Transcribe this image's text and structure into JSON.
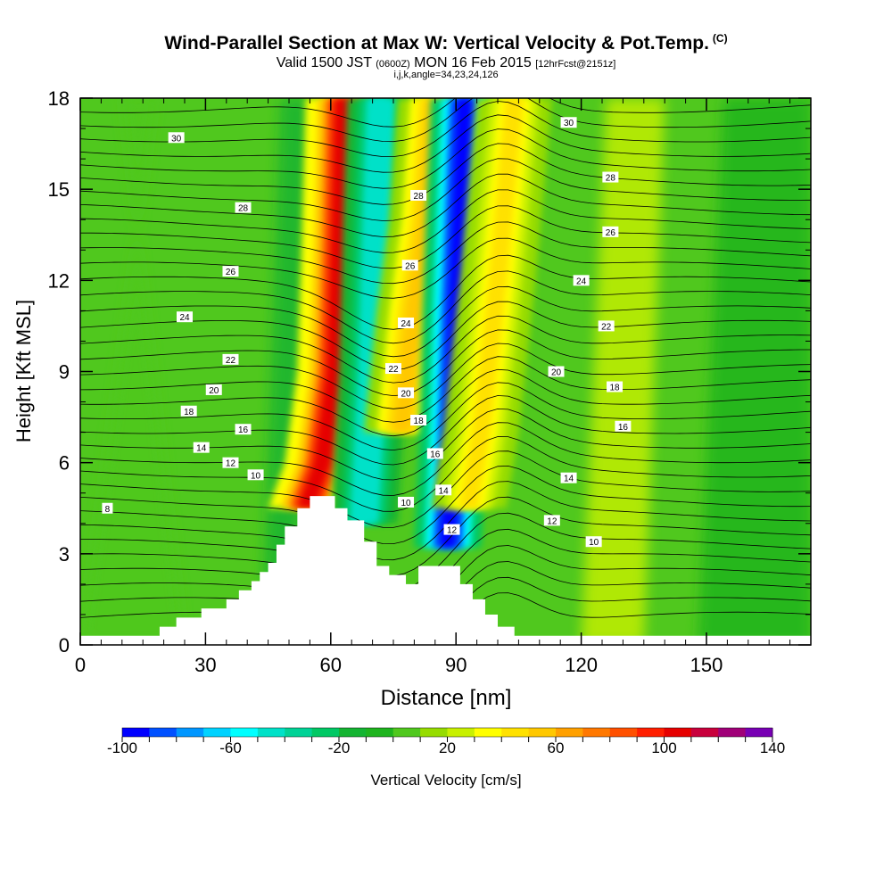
{
  "header": {
    "title": "Wind-Parallel Section at Max W: Vertical Velocity & Pot.Temp.",
    "title_unit": "(C)",
    "valid_prefix": "Valid 1500 JST",
    "valid_z": "(0600Z)",
    "valid_date": "MON 16 Feb 2015",
    "forecast": "[12hrFcst@2151z]",
    "indices": "i,j,k,angle=34,23,24,126"
  },
  "chart_data": {
    "type": "heatmap",
    "xlabel": "Distance [nm]",
    "ylabel": "Height [Kft MSL]",
    "xlim": [
      0,
      175
    ],
    "ylim": [
      0,
      18
    ],
    "xticks": [
      0,
      30,
      60,
      90,
      120,
      150
    ],
    "yticks": [
      0,
      3,
      6,
      9,
      12,
      15,
      18
    ],
    "colorbar": {
      "label": "Vertical Velocity [cm/s]",
      "min": -100,
      "max": 140,
      "step": 10,
      "tick_labels": [
        "-100",
        "-60",
        "-20",
        "20",
        "60",
        "100",
        "140"
      ],
      "colors": [
        "#0000ff",
        "#0050ff",
        "#0096ff",
        "#00d2ff",
        "#00ffff",
        "#00e1c8",
        "#00d296",
        "#00c864",
        "#14b432",
        "#1eb41e",
        "#50c81e",
        "#96dc00",
        "#c8f000",
        "#ffff00",
        "#ffe100",
        "#ffc800",
        "#ffa000",
        "#ff7800",
        "#ff5000",
        "#ff1e00",
        "#e60000",
        "#c8003c",
        "#a00078",
        "#7800b4"
      ]
    },
    "terrain_kft": [
      [
        0,
        0.3
      ],
      [
        19,
        0.3
      ],
      [
        19,
        0.6
      ],
      [
        23,
        0.6
      ],
      [
        23,
        0.9
      ],
      [
        29,
        0.9
      ],
      [
        29,
        1.2
      ],
      [
        35,
        1.2
      ],
      [
        35,
        1.5
      ],
      [
        38,
        1.5
      ],
      [
        38,
        1.8
      ],
      [
        41,
        1.8
      ],
      [
        41,
        2.1
      ],
      [
        43,
        2.1
      ],
      [
        43,
        2.4
      ],
      [
        45,
        2.4
      ],
      [
        45,
        2.7
      ],
      [
        47,
        2.7
      ],
      [
        47,
        3.3
      ],
      [
        49,
        3.3
      ],
      [
        49,
        3.9
      ],
      [
        52,
        3.9
      ],
      [
        52,
        4.5
      ],
      [
        55,
        4.5
      ],
      [
        55,
        4.9
      ],
      [
        61,
        4.9
      ],
      [
        61,
        4.5
      ],
      [
        64,
        4.5
      ],
      [
        64,
        4.1
      ],
      [
        68,
        4.1
      ],
      [
        68,
        3.4
      ],
      [
        71,
        3.4
      ],
      [
        71,
        2.6
      ],
      [
        74,
        2.6
      ],
      [
        74,
        2.3
      ],
      [
        78,
        2.3
      ],
      [
        78,
        2.0
      ],
      [
        81,
        2.0
      ],
      [
        81,
        2.6
      ],
      [
        91,
        2.6
      ],
      [
        91,
        2.0
      ],
      [
        94,
        2.0
      ],
      [
        94,
        1.5
      ],
      [
        97,
        1.5
      ],
      [
        97,
        1.0
      ],
      [
        100,
        1.0
      ],
      [
        100,
        0.6
      ],
      [
        104,
        0.6
      ],
      [
        104,
        0.3
      ],
      [
        175,
        0.3
      ]
    ],
    "w_features": [
      {
        "sign": "updraft",
        "x_kft_path": [
          [
            54,
            4.5
          ],
          [
            58,
            6
          ],
          [
            61,
            9
          ],
          [
            62,
            13
          ],
          [
            63,
            18
          ]
        ],
        "peak_cms": 100
      },
      {
        "sign": "downdraft",
        "x_kft_path": [
          [
            68,
            4.0
          ],
          [
            70,
            9
          ],
          [
            71,
            14
          ],
          [
            72,
            18
          ]
        ],
        "peak_cms": -50
      },
      {
        "sign": "updraft",
        "x_kft_path": [
          [
            77,
            7
          ],
          [
            80,
            11
          ],
          [
            83,
            14
          ],
          [
            85,
            18
          ]
        ],
        "peak_cms": 55
      },
      {
        "sign": "downdraft",
        "x_kft_path": [
          [
            88,
            3.2
          ],
          [
            89,
            6
          ],
          [
            90,
            11
          ],
          [
            92,
            18
          ]
        ],
        "peak_cms": -100
      },
      {
        "sign": "updraft",
        "x_kft_path": [
          [
            93,
            4.5
          ],
          [
            96,
            7
          ],
          [
            100,
            12
          ],
          [
            104,
            18
          ]
        ],
        "peak_cms": 40
      }
    ],
    "theta_contours": [
      {
        "label": "8",
        "label_pos": [
          6.5,
          4.5
        ]
      },
      {
        "label": "10",
        "label_pos": [
          42,
          5.6
        ]
      },
      {
        "label": "10",
        "label_pos": [
          78,
          4.7
        ]
      },
      {
        "label": "10",
        "label_pos": [
          123,
          3.4
        ]
      },
      {
        "label": "12",
        "label_pos": [
          36,
          6.0
        ]
      },
      {
        "label": "12",
        "label_pos": [
          89,
          3.8
        ]
      },
      {
        "label": "12",
        "label_pos": [
          113,
          4.1
        ]
      },
      {
        "label": "14",
        "label_pos": [
          29,
          6.5
        ]
      },
      {
        "label": "14",
        "label_pos": [
          87,
          5.1
        ]
      },
      {
        "label": "14",
        "label_pos": [
          117,
          5.5
        ]
      },
      {
        "label": "16",
        "label_pos": [
          39,
          7.1
        ]
      },
      {
        "label": "16",
        "label_pos": [
          85,
          6.3
        ]
      },
      {
        "label": "16",
        "label_pos": [
          130,
          7.2
        ]
      },
      {
        "label": "18",
        "label_pos": [
          26,
          7.7
        ]
      },
      {
        "label": "18",
        "label_pos": [
          81,
          7.4
        ]
      },
      {
        "label": "18",
        "label_pos": [
          128,
          8.5
        ]
      },
      {
        "label": "20",
        "label_pos": [
          32,
          8.4
        ]
      },
      {
        "label": "20",
        "label_pos": [
          78,
          8.3
        ]
      },
      {
        "label": "20",
        "label_pos": [
          114,
          9.0
        ]
      },
      {
        "label": "22",
        "label_pos": [
          36,
          9.4
        ]
      },
      {
        "label": "22",
        "label_pos": [
          75,
          9.1
        ]
      },
      {
        "label": "22",
        "label_pos": [
          126,
          10.5
        ]
      },
      {
        "label": "24",
        "label_pos": [
          25,
          10.8
        ]
      },
      {
        "label": "24",
        "label_pos": [
          78,
          10.6
        ]
      },
      {
        "label": "24",
        "label_pos": [
          120,
          12.0
        ]
      },
      {
        "label": "26",
        "label_pos": [
          36,
          12.3
        ]
      },
      {
        "label": "26",
        "label_pos": [
          79,
          12.5
        ]
      },
      {
        "label": "26",
        "label_pos": [
          127,
          13.6
        ]
      },
      {
        "label": "28",
        "label_pos": [
          39,
          14.4
        ]
      },
      {
        "label": "28",
        "label_pos": [
          81,
          14.8
        ]
      },
      {
        "label": "28",
        "label_pos": [
          127,
          15.4
        ]
      },
      {
        "label": "30",
        "label_pos": [
          23,
          16.7
        ]
      },
      {
        "label": "30",
        "label_pos": [
          117,
          17.2
        ]
      }
    ]
  }
}
